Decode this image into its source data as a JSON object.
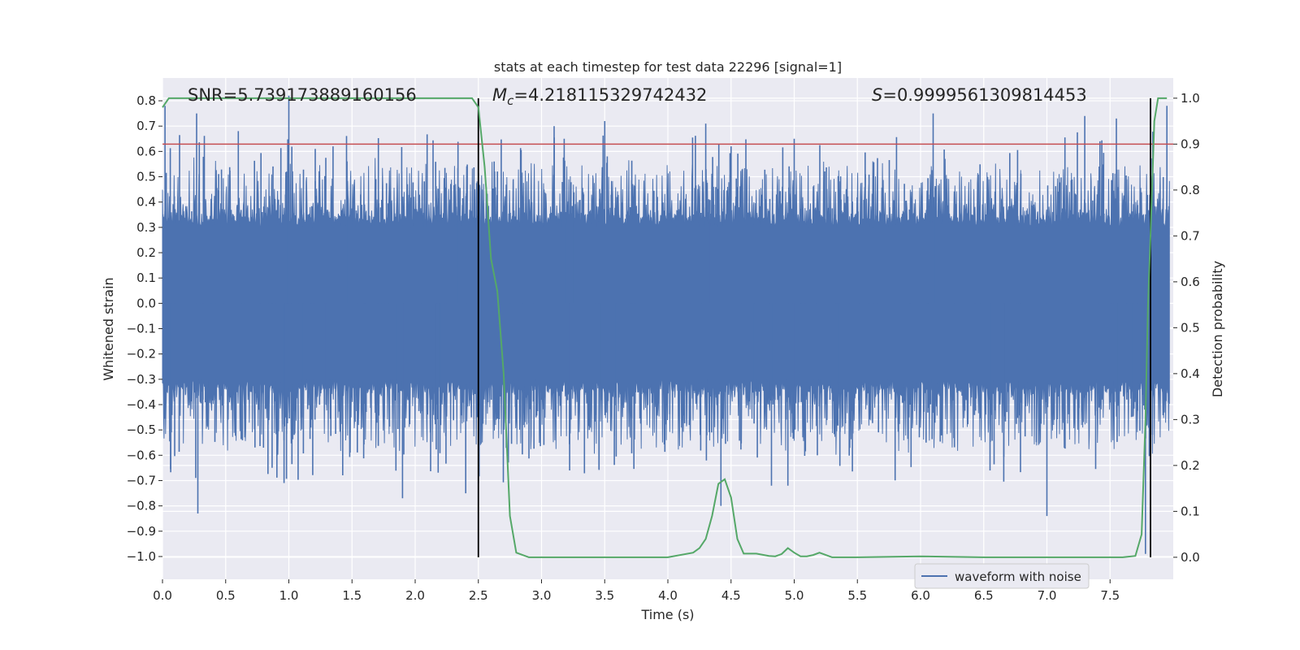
{
  "chart_data": {
    "type": "line",
    "title": "stats at each timestep for test data 22296 [signal=1]",
    "xlabel": "Time (s)",
    "ylabel": "Whitened strain",
    "y2label": "Detection probability",
    "xlim": [
      0.0,
      8.0
    ],
    "ylim": [
      -1.09,
      0.89
    ],
    "y2lim": [
      -0.048,
      1.044
    ],
    "xticks": [
      "0.0",
      "0.5",
      "1.0",
      "1.5",
      "2.0",
      "2.5",
      "3.0",
      "3.5",
      "4.0",
      "4.5",
      "5.0",
      "5.5",
      "6.0",
      "6.5",
      "7.0",
      "7.5"
    ],
    "xtick_values": [
      0.0,
      0.5,
      1.0,
      1.5,
      2.0,
      2.5,
      3.0,
      3.5,
      4.0,
      4.5,
      5.0,
      5.5,
      6.0,
      6.5,
      7.0,
      7.5
    ],
    "yticks": [
      "0.8",
      "0.7",
      "0.6",
      "0.5",
      "0.4",
      "0.3",
      "0.2",
      "0.1",
      "0.0",
      "−0.1",
      "−0.2",
      "−0.3",
      "−0.4",
      "−0.5",
      "−0.6",
      "−0.7",
      "−0.8",
      "−0.9",
      "−1.0"
    ],
    "ytick_values": [
      0.8,
      0.7,
      0.6,
      0.5,
      0.4,
      0.3,
      0.2,
      0.1,
      0.0,
      -0.1,
      -0.2,
      -0.3,
      -0.4,
      -0.5,
      -0.6,
      -0.7,
      -0.8,
      -0.9,
      -1.0
    ],
    "y2ticks": [
      "1.0",
      "0.9",
      "0.8",
      "0.7",
      "0.6",
      "0.5",
      "0.4",
      "0.3",
      "0.2",
      "0.1",
      "0.0"
    ],
    "y2tick_values": [
      1.0,
      0.9,
      0.8,
      0.7,
      0.6,
      0.5,
      0.4,
      0.3,
      0.2,
      0.1,
      0.0
    ],
    "annotations": {
      "snr": "SNR=5.739173889160156",
      "mc_symbol": "M",
      "mc_sub": "c",
      "mc_value": "=4.218115329742432",
      "s_symbol": "S",
      "s_value": "=0.9999561309814453"
    },
    "legend": {
      "label": "waveform with noise",
      "location": "lower-right"
    },
    "vertical_lines": [
      2.5,
      7.82
    ],
    "threshold": {
      "axis": "right",
      "value": 0.9
    },
    "series": [
      {
        "name": "waveform with noise",
        "axis": "left",
        "style": "dense noise, amplitude ~0.3 with spikes to ~0.8 / -1.0",
        "spikes": [
          [
            0.02,
            0.78
          ],
          [
            0.27,
            0.75
          ],
          [
            0.28,
            -0.83
          ],
          [
            0.6,
            0.68
          ],
          [
            1.0,
            0.82
          ],
          [
            1.35,
            0.62
          ],
          [
            1.9,
            -0.77
          ],
          [
            2.4,
            -0.75
          ],
          [
            2.5,
            -0.71
          ],
          [
            3.1,
            0.7
          ],
          [
            3.5,
            0.72
          ],
          [
            4.3,
            0.71
          ],
          [
            4.42,
            -0.8
          ],
          [
            4.5,
            0.62
          ],
          [
            4.82,
            -0.72
          ],
          [
            4.95,
            -0.72
          ],
          [
            5.0,
            0.65
          ],
          [
            6.1,
            0.75
          ],
          [
            6.55,
            -0.66
          ],
          [
            7.0,
            -0.84
          ],
          [
            7.3,
            0.74
          ],
          [
            7.42,
            0.64
          ],
          [
            7.55,
            0.73
          ],
          [
            7.78,
            -0.99
          ],
          [
            7.82,
            -0.83
          ],
          [
            7.95,
            0.78
          ]
        ]
      },
      {
        "name": "detection probability",
        "axis": "right",
        "x": [
          0.0,
          0.05,
          0.1,
          0.5,
          1.0,
          1.5,
          2.0,
          2.45,
          2.5,
          2.55,
          2.6,
          2.65,
          2.7,
          2.75,
          2.8,
          2.85,
          2.9,
          3.0,
          3.5,
          4.0,
          4.2,
          4.25,
          4.3,
          4.35,
          4.4,
          4.45,
          4.5,
          4.55,
          4.6,
          4.7,
          4.8,
          4.85,
          4.9,
          4.95,
          5.0,
          5.05,
          5.1,
          5.15,
          5.2,
          5.25,
          5.3,
          5.5,
          6.0,
          6.5,
          7.0,
          7.5,
          7.6,
          7.7,
          7.75,
          7.78,
          7.8,
          7.82,
          7.85,
          7.88,
          7.92,
          7.95
        ],
        "values": [
          0.98,
          1.0,
          1.0,
          1.0,
          1.0,
          1.0,
          1.0,
          1.0,
          0.98,
          0.85,
          0.65,
          0.58,
          0.4,
          0.09,
          0.01,
          0.005,
          0.0,
          0.0,
          0.0,
          0.0,
          0.01,
          0.02,
          0.04,
          0.09,
          0.16,
          0.17,
          0.13,
          0.04,
          0.008,
          0.008,
          0.003,
          0.002,
          0.007,
          0.02,
          0.01,
          0.002,
          0.002,
          0.005,
          0.01,
          0.005,
          0.0,
          0.0,
          0.002,
          0.0,
          0.0,
          0.0,
          0.0,
          0.003,
          0.05,
          0.3,
          0.55,
          0.7,
          0.95,
          1.0,
          1.0,
          1.0
        ]
      }
    ]
  }
}
